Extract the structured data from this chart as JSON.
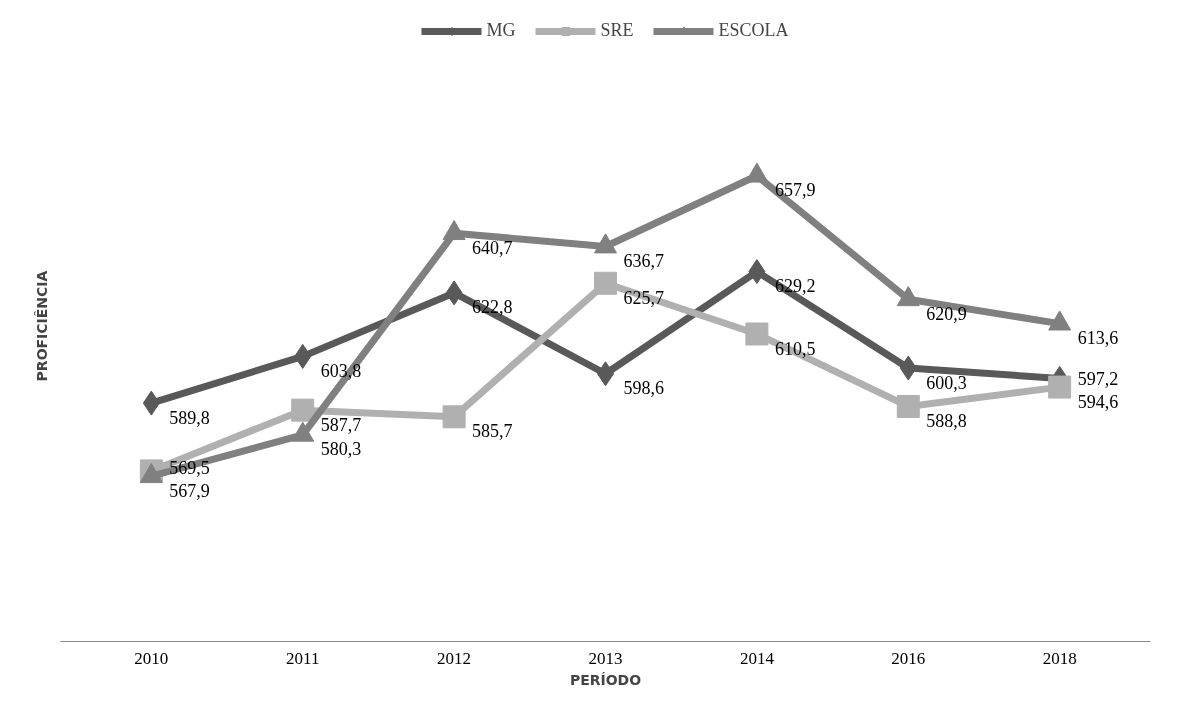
{
  "chart_data": {
    "type": "line",
    "xlabel": "PERÍODO",
    "ylabel": "PROFICIÊNCIA",
    "categories": [
      "2010",
      "2011",
      "2012",
      "2013",
      "2014",
      "2016",
      "2018"
    ],
    "series": [
      {
        "name": "MG",
        "color": "#595959",
        "marker": "diamond",
        "values": [
          589.8,
          603.8,
          622.8,
          598.6,
          629.2,
          600.3,
          597.2
        ],
        "value_labels": [
          "589,8",
          "603,8",
          "622,8",
          "598,6",
          "629,2",
          "600,3",
          "597,2"
        ]
      },
      {
        "name": "SRE",
        "color": "#b0b0b0",
        "marker": "square",
        "values": [
          569.5,
          587.7,
          585.7,
          625.7,
          610.5,
          588.8,
          594.6
        ],
        "value_labels": [
          "569,5",
          "587,7",
          "585,7",
          "625,7",
          "610,5",
          "588,8",
          "594,6"
        ]
      },
      {
        "name": "ESCOLA",
        "color": "#808080",
        "marker": "triangle",
        "values": [
          567.9,
          580.3,
          640.7,
          636.7,
          657.9,
          620.9,
          613.6
        ],
        "value_labels": [
          "567,9",
          "580,3",
          "640,7",
          "636,7",
          "657,9",
          "620,9",
          "613,6"
        ]
      }
    ],
    "legend": "top",
    "grid": false,
    "tick_labels": "x",
    "line_style": "solid"
  }
}
